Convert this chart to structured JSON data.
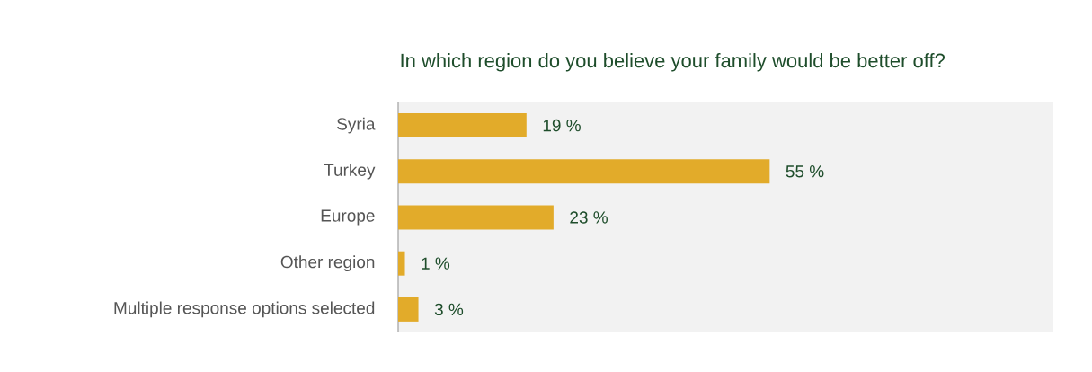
{
  "chart_data": {
    "type": "bar",
    "orientation": "horizontal",
    "title": "In which region do you believe your family would be better off?",
    "categories": [
      "Syria",
      "Turkey",
      "Europe",
      "Other region",
      "Multiple response options selected"
    ],
    "values": [
      19,
      55,
      23,
      1,
      3
    ],
    "value_labels": [
      "19 %",
      "55 %",
      "23 %",
      "1 %",
      "3 %"
    ],
    "color": "#e2ab2a",
    "xlim": [
      0,
      97
    ]
  }
}
